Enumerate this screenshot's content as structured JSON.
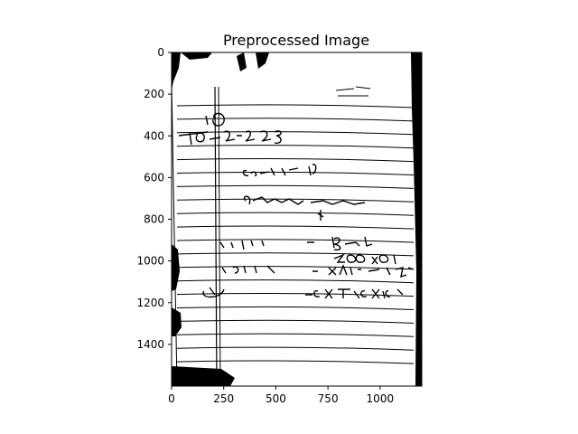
{
  "chart_data": {
    "type": "image",
    "title": "Preprocessed Image",
    "xlabel": "",
    "ylabel": "",
    "xlim": [
      0,
      1200
    ],
    "ylim": [
      1600,
      0
    ],
    "x_ticks": [
      0,
      250,
      500,
      750,
      1000
    ],
    "y_ticks": [
      0,
      200,
      400,
      600,
      800,
      1000,
      1200,
      1400
    ],
    "grid": false,
    "image": {
      "description": "binarized scan of a handwritten ruled notebook page",
      "handwritten_text": [
        "10",
        "10-2-2023",
        "Cama fer f/V",
        "8hailere pain",
        "Belen fr",
        "200 X OD",
        "X A14.db Y5",
        "5(X TD 5X 10"
      ]
    }
  }
}
